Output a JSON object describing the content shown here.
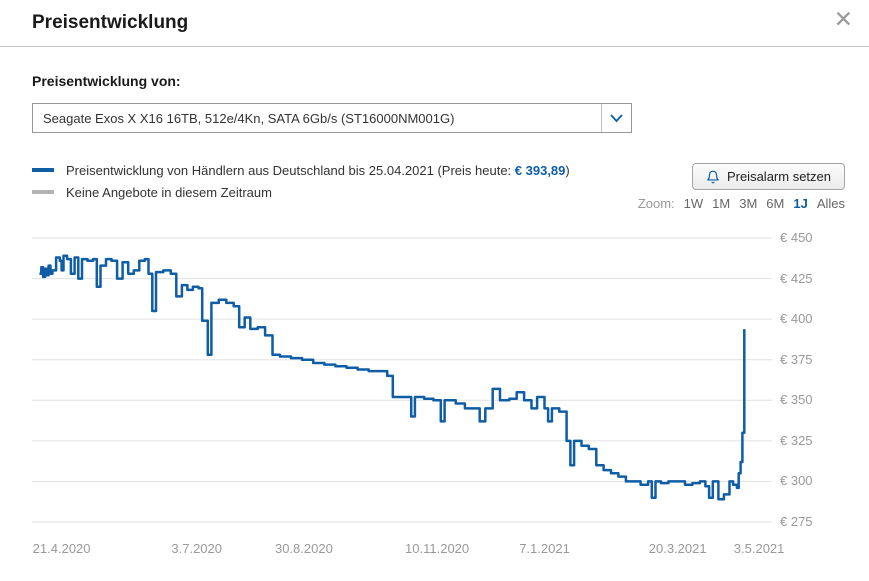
{
  "header": {
    "title": "Preisentwicklung",
    "close_icon": "✕"
  },
  "selector": {
    "label": "Preisentwicklung von:",
    "value": "Seagate Exos X X16 16TB, 512e/4Kn, SATA 6Gb/s (ST16000NM001G)"
  },
  "legend": {
    "series1_prefix": "Preisentwicklung von Händlern aus Deutschland bis 25.04.2021 (Preis heute: ",
    "series1_price": "€ 393,89",
    "series1_suffix": ")",
    "series2": "Keine Angebote in diesem Zeitraum"
  },
  "price_alert": {
    "label": "Preisalarm setzen"
  },
  "zoom": {
    "label": "Zoom:",
    "options": [
      {
        "label": "1W",
        "active": false
      },
      {
        "label": "1M",
        "active": false
      },
      {
        "label": "3M",
        "active": false
      },
      {
        "label": "6M",
        "active": false
      },
      {
        "label": "1J",
        "active": true
      },
      {
        "label": "Alles",
        "active": false
      }
    ]
  },
  "colors": {
    "series_blue": "#0e5da5",
    "series_gray": "#b3b3b3",
    "grid": "#e2e2e2",
    "axis_label": "#999999",
    "link_blue": "#0e5da5"
  },
  "chart_data": {
    "type": "line",
    "step": "after",
    "title": "",
    "xlabel": "",
    "ylabel": "",
    "x_unit": "days since 21.4.2020",
    "x_range": [
      -16,
      384
    ],
    "y_range": [
      267,
      458
    ],
    "grid": "horizontal",
    "legend_position": "top-left",
    "last_price": 393.89,
    "y_ticks": [
      {
        "value": 450,
        "label": "€ 450"
      },
      {
        "value": 425,
        "label": "€ 425"
      },
      {
        "value": 400,
        "label": "€ 400"
      },
      {
        "value": 375,
        "label": "€ 375"
      },
      {
        "value": 350,
        "label": "€ 350"
      },
      {
        "value": 325,
        "label": "€ 325"
      },
      {
        "value": 300,
        "label": "€ 300"
      },
      {
        "value": 275,
        "label": "€ 275"
      }
    ],
    "x_ticks": [
      {
        "day": 0,
        "label": "21.4.2020"
      },
      {
        "day": 73,
        "label": "3.7.2020"
      },
      {
        "day": 131,
        "label": "30.8.2020"
      },
      {
        "day": 203,
        "label": "10.11.2020"
      },
      {
        "day": 261,
        "label": "7.1.2021"
      },
      {
        "day": 333,
        "label": "20.3.2021"
      },
      {
        "day": 377,
        "label": "3.5.2021"
      }
    ],
    "series": [
      {
        "name": "Preisentwicklung von Händlern aus Deutschland bis 25.04.2021",
        "color": "#0e5da5",
        "points": [
          [
            -12,
            428
          ],
          [
            -11,
            432
          ],
          [
            -10,
            426
          ],
          [
            -9,
            431
          ],
          [
            -8,
            427
          ],
          [
            -7,
            433
          ],
          [
            -6,
            428
          ],
          [
            -5,
            430
          ],
          [
            -3,
            438
          ],
          [
            -1,
            436
          ],
          [
            0,
            430
          ],
          [
            1,
            439
          ],
          [
            3,
            437
          ],
          [
            5,
            428
          ],
          [
            7,
            438
          ],
          [
            9,
            425
          ],
          [
            11,
            437
          ],
          [
            14,
            436
          ],
          [
            17,
            437
          ],
          [
            19,
            420
          ],
          [
            21,
            433
          ],
          [
            24,
            437
          ],
          [
            27,
            436
          ],
          [
            30,
            425
          ],
          [
            33,
            435
          ],
          [
            36,
            428
          ],
          [
            39,
            430
          ],
          [
            42,
            436
          ],
          [
            45,
            437
          ],
          [
            47,
            428
          ],
          [
            49,
            405
          ],
          [
            51,
            429
          ],
          [
            55,
            430
          ],
          [
            59,
            428
          ],
          [
            62,
            414
          ],
          [
            65,
            421
          ],
          [
            68,
            418
          ],
          [
            71,
            420
          ],
          [
            74,
            419
          ],
          [
            76,
            399
          ],
          [
            79,
            378
          ],
          [
            81,
            410
          ],
          [
            85,
            412
          ],
          [
            89,
            410
          ],
          [
            93,
            408
          ],
          [
            96,
            395
          ],
          [
            99,
            401
          ],
          [
            102,
            394
          ],
          [
            106,
            395
          ],
          [
            110,
            390
          ],
          [
            114,
            378
          ],
          [
            118,
            377
          ],
          [
            124,
            376
          ],
          [
            130,
            375
          ],
          [
            136,
            373
          ],
          [
            142,
            372
          ],
          [
            148,
            371
          ],
          [
            154,
            370
          ],
          [
            160,
            369
          ],
          [
            166,
            368
          ],
          [
            172,
            368
          ],
          [
            176,
            365
          ],
          [
            179,
            352
          ],
          [
            185,
            352
          ],
          [
            189,
            340
          ],
          [
            191,
            352
          ],
          [
            196,
            351
          ],
          [
            201,
            350
          ],
          [
            205,
            337
          ],
          [
            207,
            350
          ],
          [
            213,
            348
          ],
          [
            218,
            345
          ],
          [
            223,
            345
          ],
          [
            226,
            337
          ],
          [
            229,
            345
          ],
          [
            233,
            357
          ],
          [
            237,
            350
          ],
          [
            242,
            351
          ],
          [
            246,
            355
          ],
          [
            250,
            350
          ],
          [
            254,
            345
          ],
          [
            257,
            352
          ],
          [
            261,
            345
          ],
          [
            263,
            337
          ],
          [
            265,
            345
          ],
          [
            269,
            343
          ],
          [
            273,
            325
          ],
          [
            275,
            310
          ],
          [
            277,
            325
          ],
          [
            281,
            322
          ],
          [
            285,
            320
          ],
          [
            289,
            310
          ],
          [
            293,
            307
          ],
          [
            297,
            305
          ],
          [
            301,
            303
          ],
          [
            305,
            300
          ],
          [
            309,
            300
          ],
          [
            313,
            298
          ],
          [
            317,
            300
          ],
          [
            319,
            290
          ],
          [
            321,
            300
          ],
          [
            324,
            299
          ],
          [
            328,
            300
          ],
          [
            333,
            300
          ],
          [
            337,
            298
          ],
          [
            341,
            299
          ],
          [
            345,
            300
          ],
          [
            348,
            297
          ],
          [
            350,
            290
          ],
          [
            352,
            300
          ],
          [
            355,
            289
          ],
          [
            358,
            292
          ],
          [
            361,
            300
          ],
          [
            363,
            298
          ],
          [
            365,
            296
          ],
          [
            366,
            305
          ],
          [
            367,
            312
          ],
          [
            368,
            330
          ],
          [
            369,
            393.89
          ]
        ]
      },
      {
        "name": "Keine Angebote in diesem Zeitraum",
        "color": "#b3b3b3",
        "points": []
      }
    ]
  }
}
